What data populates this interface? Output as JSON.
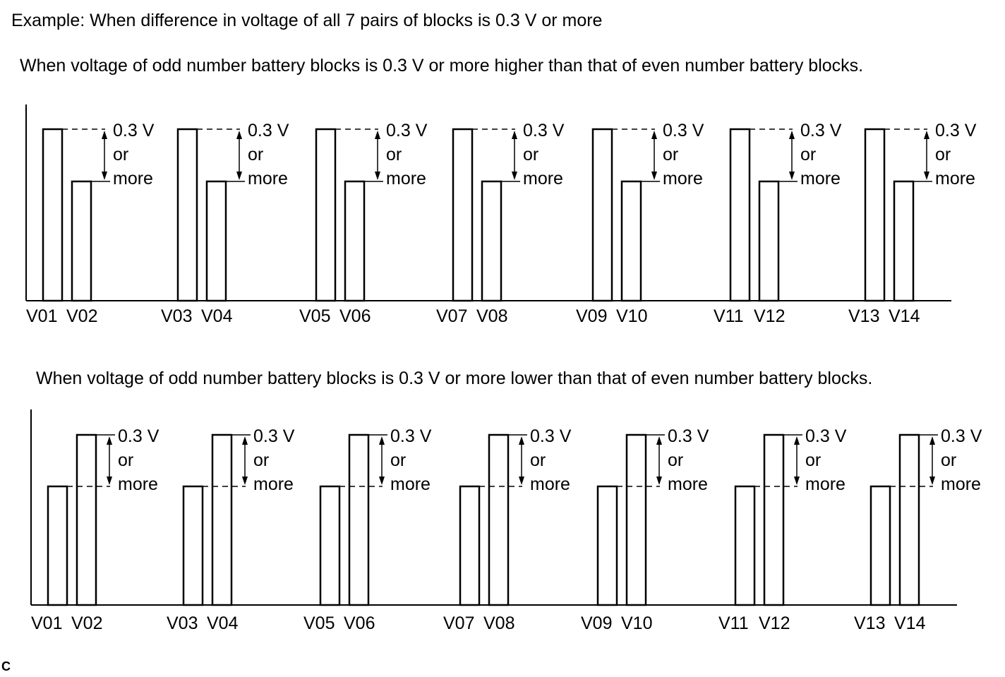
{
  "header": "Example: When difference in voltage of all 7 pairs of blocks is 0.3 V or more",
  "charts": [
    {
      "caption": "When voltage of odd number battery blocks is 0.3 V or more higher than that of even number battery blocks.",
      "higher": "odd",
      "pairs": [
        {
          "odd": "V01",
          "even": "V02"
        },
        {
          "odd": "V03",
          "even": "V04"
        },
        {
          "odd": "V05",
          "even": "V06"
        },
        {
          "odd": "V07",
          "even": "V08"
        },
        {
          "odd": "V09",
          "even": "V10"
        },
        {
          "odd": "V11",
          "even": "V12"
        },
        {
          "odd": "V13",
          "even": "V14"
        }
      ],
      "annotation": [
        "0.3 V",
        "or",
        "more"
      ]
    },
    {
      "caption": "When voltage of odd number battery blocks is 0.3 V or more lower than that of even number battery blocks.",
      "higher": "even",
      "pairs": [
        {
          "odd": "V01",
          "even": "V02"
        },
        {
          "odd": "V03",
          "even": "V04"
        },
        {
          "odd": "V05",
          "even": "V06"
        },
        {
          "odd": "V07",
          "even": "V08"
        },
        {
          "odd": "V09",
          "even": "V10"
        },
        {
          "odd": "V11",
          "even": "V12"
        },
        {
          "odd": "V13",
          "even": "V14"
        }
      ],
      "annotation": [
        "0.3 V",
        "or",
        "more"
      ]
    }
  ],
  "corner_mark": "C"
}
